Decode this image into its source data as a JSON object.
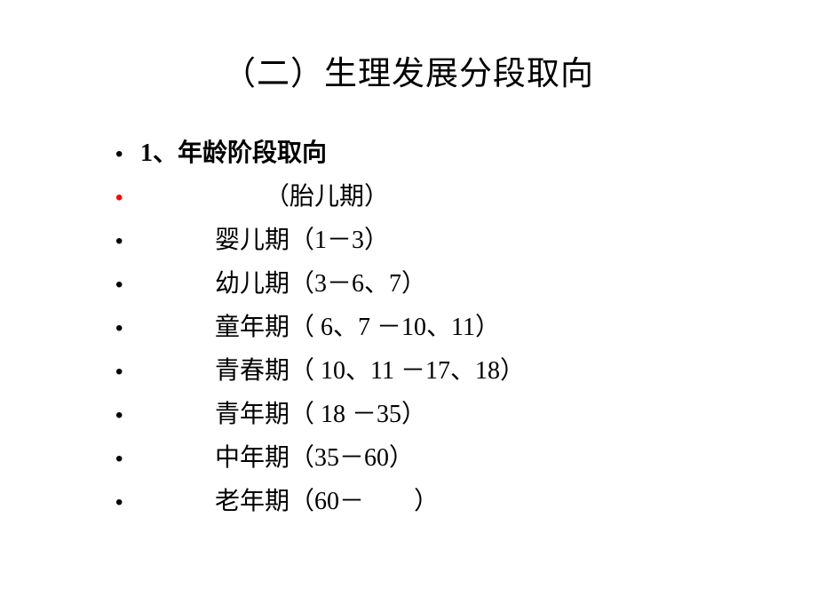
{
  "slide": {
    "title": "（二）生理发展分段取向",
    "title_fontsize": 37,
    "title_color": "#000000",
    "background_color": "#ffffff",
    "bullet_color": "#000000",
    "bullet_red_color": "#ff0000",
    "body_fontsize": 28,
    "lines": [
      {
        "prefix": "1、",
        "text": "年龄阶段取向",
        "bold": true,
        "bullet_red": false,
        "indent_class": "indent-1"
      },
      {
        "prefix": "",
        "text": "（胎儿期）",
        "bold": false,
        "bullet_red": true,
        "indent_class": "indent-2"
      },
      {
        "prefix": "",
        "text": "婴儿期（1－3）",
        "bold": false,
        "bullet_red": false,
        "indent_class": "indent-3"
      },
      {
        "prefix": "",
        "text": "幼儿期（3－6、7）",
        "bold": false,
        "bullet_red": false,
        "indent_class": "indent-3"
      },
      {
        "prefix": "",
        "text": "童年期（ 6、7 －10、11）",
        "bold": false,
        "bullet_red": false,
        "indent_class": "indent-3"
      },
      {
        "prefix": "",
        "text": "青春期（ 10、11 －17、18）",
        "bold": false,
        "bullet_red": false,
        "indent_class": "indent-3"
      },
      {
        "prefix": "",
        "text": "青年期（ 18 －35）",
        "bold": false,
        "bullet_red": false,
        "indent_class": "indent-3"
      },
      {
        "prefix": "",
        "text": "中年期（35－60）",
        "bold": false,
        "bullet_red": false,
        "indent_class": "indent-3"
      },
      {
        "prefix": "",
        "text": "老年期（60－　　）",
        "bold": false,
        "bullet_red": false,
        "indent_class": "indent-3"
      }
    ]
  }
}
